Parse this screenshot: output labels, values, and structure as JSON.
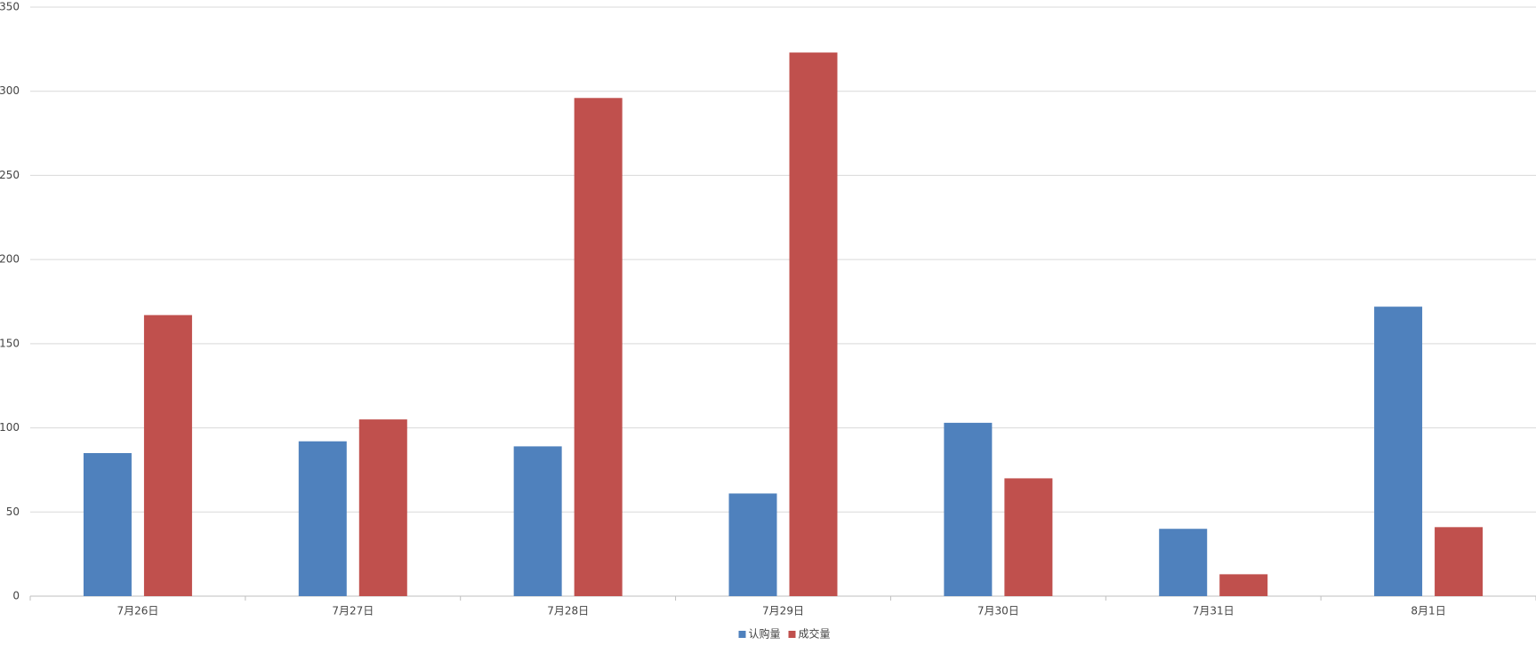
{
  "chart_data": {
    "type": "bar",
    "categories": [
      "7月26日",
      "7月27日",
      "7月28日",
      "7月29日",
      "7月30日",
      "7月31日",
      "8月1日"
    ],
    "series": [
      {
        "name": "认购量",
        "color": "#4f81bd",
        "values": [
          85,
          92,
          89,
          61,
          103,
          40,
          172
        ]
      },
      {
        "name": "成交量",
        "color": "#c0504d",
        "values": [
          167,
          105,
          296,
          323,
          70,
          13,
          41
        ]
      }
    ],
    "ylim": [
      0,
      350
    ],
    "yticks": [
      0,
      50,
      100,
      150,
      200,
      250,
      300,
      350
    ],
    "grid": true,
    "legend": "bottom"
  }
}
